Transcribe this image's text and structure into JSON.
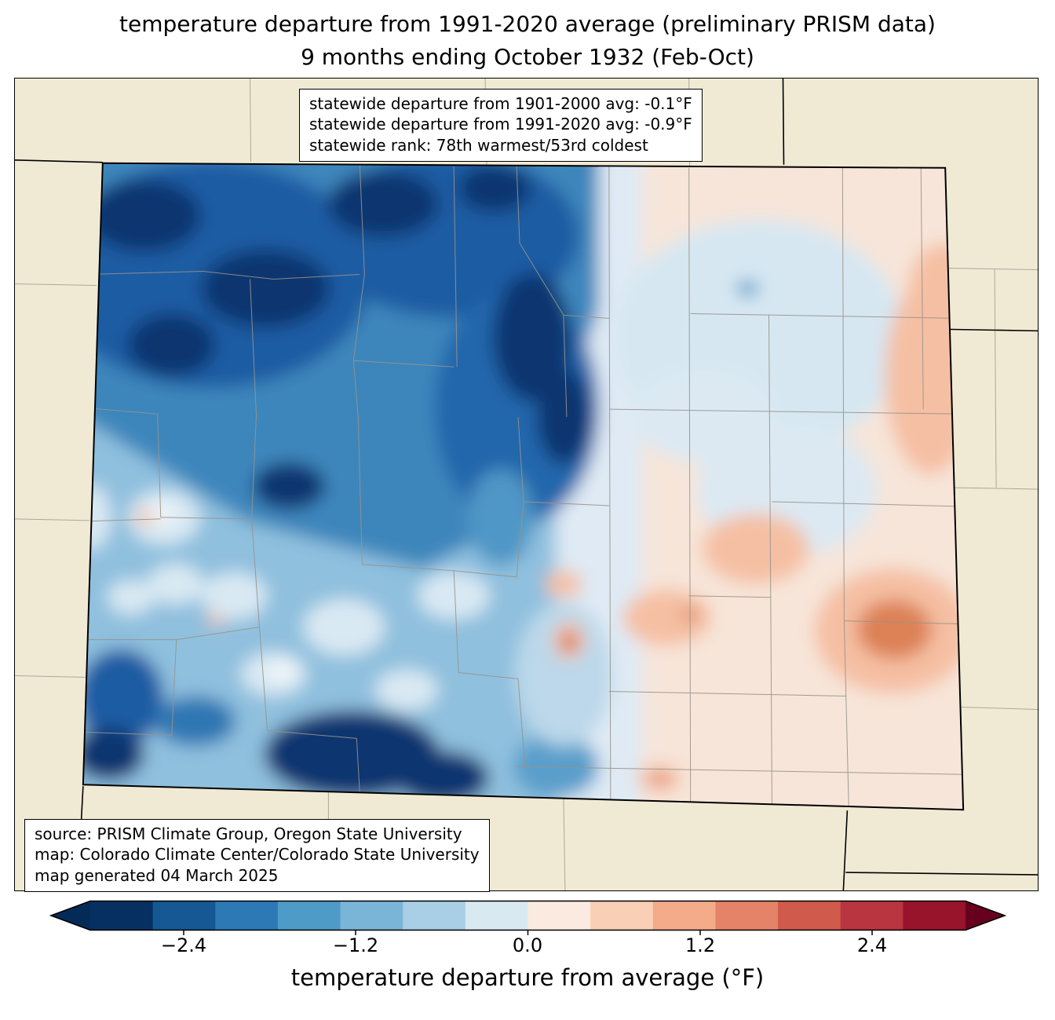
{
  "title": {
    "line1": "temperature departure from 1991-2020 average (preliminary PRISM data)",
    "line2": "9 months ending October 1932 (Feb-Oct)"
  },
  "stats_box": {
    "line1": "statewide departure from 1901-2000 avg: -0.1°F",
    "line2": "statewide departure from 1991-2020 avg: -0.9°F",
    "line3": "statewide rank: 78th warmest/53rd coldest"
  },
  "source_box": {
    "line1": "source: PRISM Climate Group, Oregon State University",
    "line2": "map: Colorado Climate Center/Colorado State University",
    "line3": "map generated 04 March 2025"
  },
  "map": {
    "state": "Colorado",
    "background_color": "#f0ead5",
    "state_border_color": "#000000",
    "county_line_color": "#98938b",
    "base_fill_color": "#e7eff6"
  },
  "colorbar": {
    "label": "temperature departure from average (°F)",
    "ticks": [
      "−2.4",
      "−1.2",
      "0.0",
      "1.2",
      "2.4"
    ],
    "tick_values": [
      -2.4,
      -1.2,
      0.0,
      1.2,
      2.4
    ],
    "range": [
      -3.05,
      3.05
    ],
    "colors": [
      "#053061",
      "#155893",
      "#2d79b5",
      "#4f9bc7",
      "#7ab5d8",
      "#a8cfe5",
      "#d9e9f2",
      "#faeadf",
      "#f9cfb5",
      "#f3ab8a",
      "#e58368",
      "#d05a4c",
      "#b93540",
      "#97142b"
    ],
    "left_arrow_color": "#042b57",
    "right_arrow_color": "#67001f"
  }
}
